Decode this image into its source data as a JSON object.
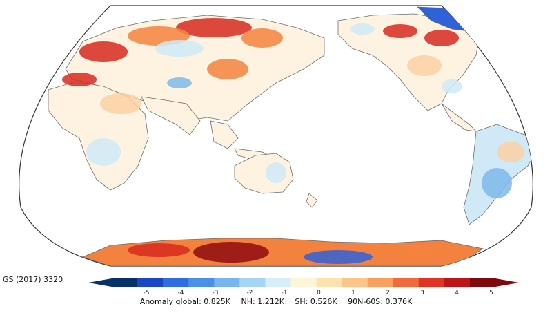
{
  "dataset_label": "GS (2017) 3320",
  "colorbar": {
    "ticks": [
      "-5",
      "-4",
      "-3",
      "-2",
      "-1",
      "0",
      "1",
      "2",
      "3",
      "4",
      "5"
    ],
    "colors": [
      "#08306b",
      "#1a48c4",
      "#2f6ee0",
      "#4a8fe8",
      "#78b4ef",
      "#a6d4f4",
      "#d5eefa",
      "#fdf5d8",
      "#fde2b0",
      "#fcc486",
      "#f9a05d",
      "#f26a3b",
      "#e03324",
      "#bb1419",
      "#7f0a0d"
    ]
  },
  "summary": {
    "global": "Anomaly global: 0.825K",
    "nh": "NH: 1.212K",
    "sh": "SH: 0.526K",
    "band": "90N-60S: 0.376K"
  },
  "map": {
    "projection": "robinson-pacific-centered",
    "land_colors": {
      "neutral": "#fdf3e0",
      "warm_light": "#fcd0a3",
      "warm": "#f4823f",
      "hot": "#d62a1e",
      "very_hot": "#8e0c10",
      "cool_light": "#cfe9f7",
      "cool": "#7eb8ea",
      "cold": "#2f62d8"
    },
    "coast_color": "#6b6b6b"
  }
}
